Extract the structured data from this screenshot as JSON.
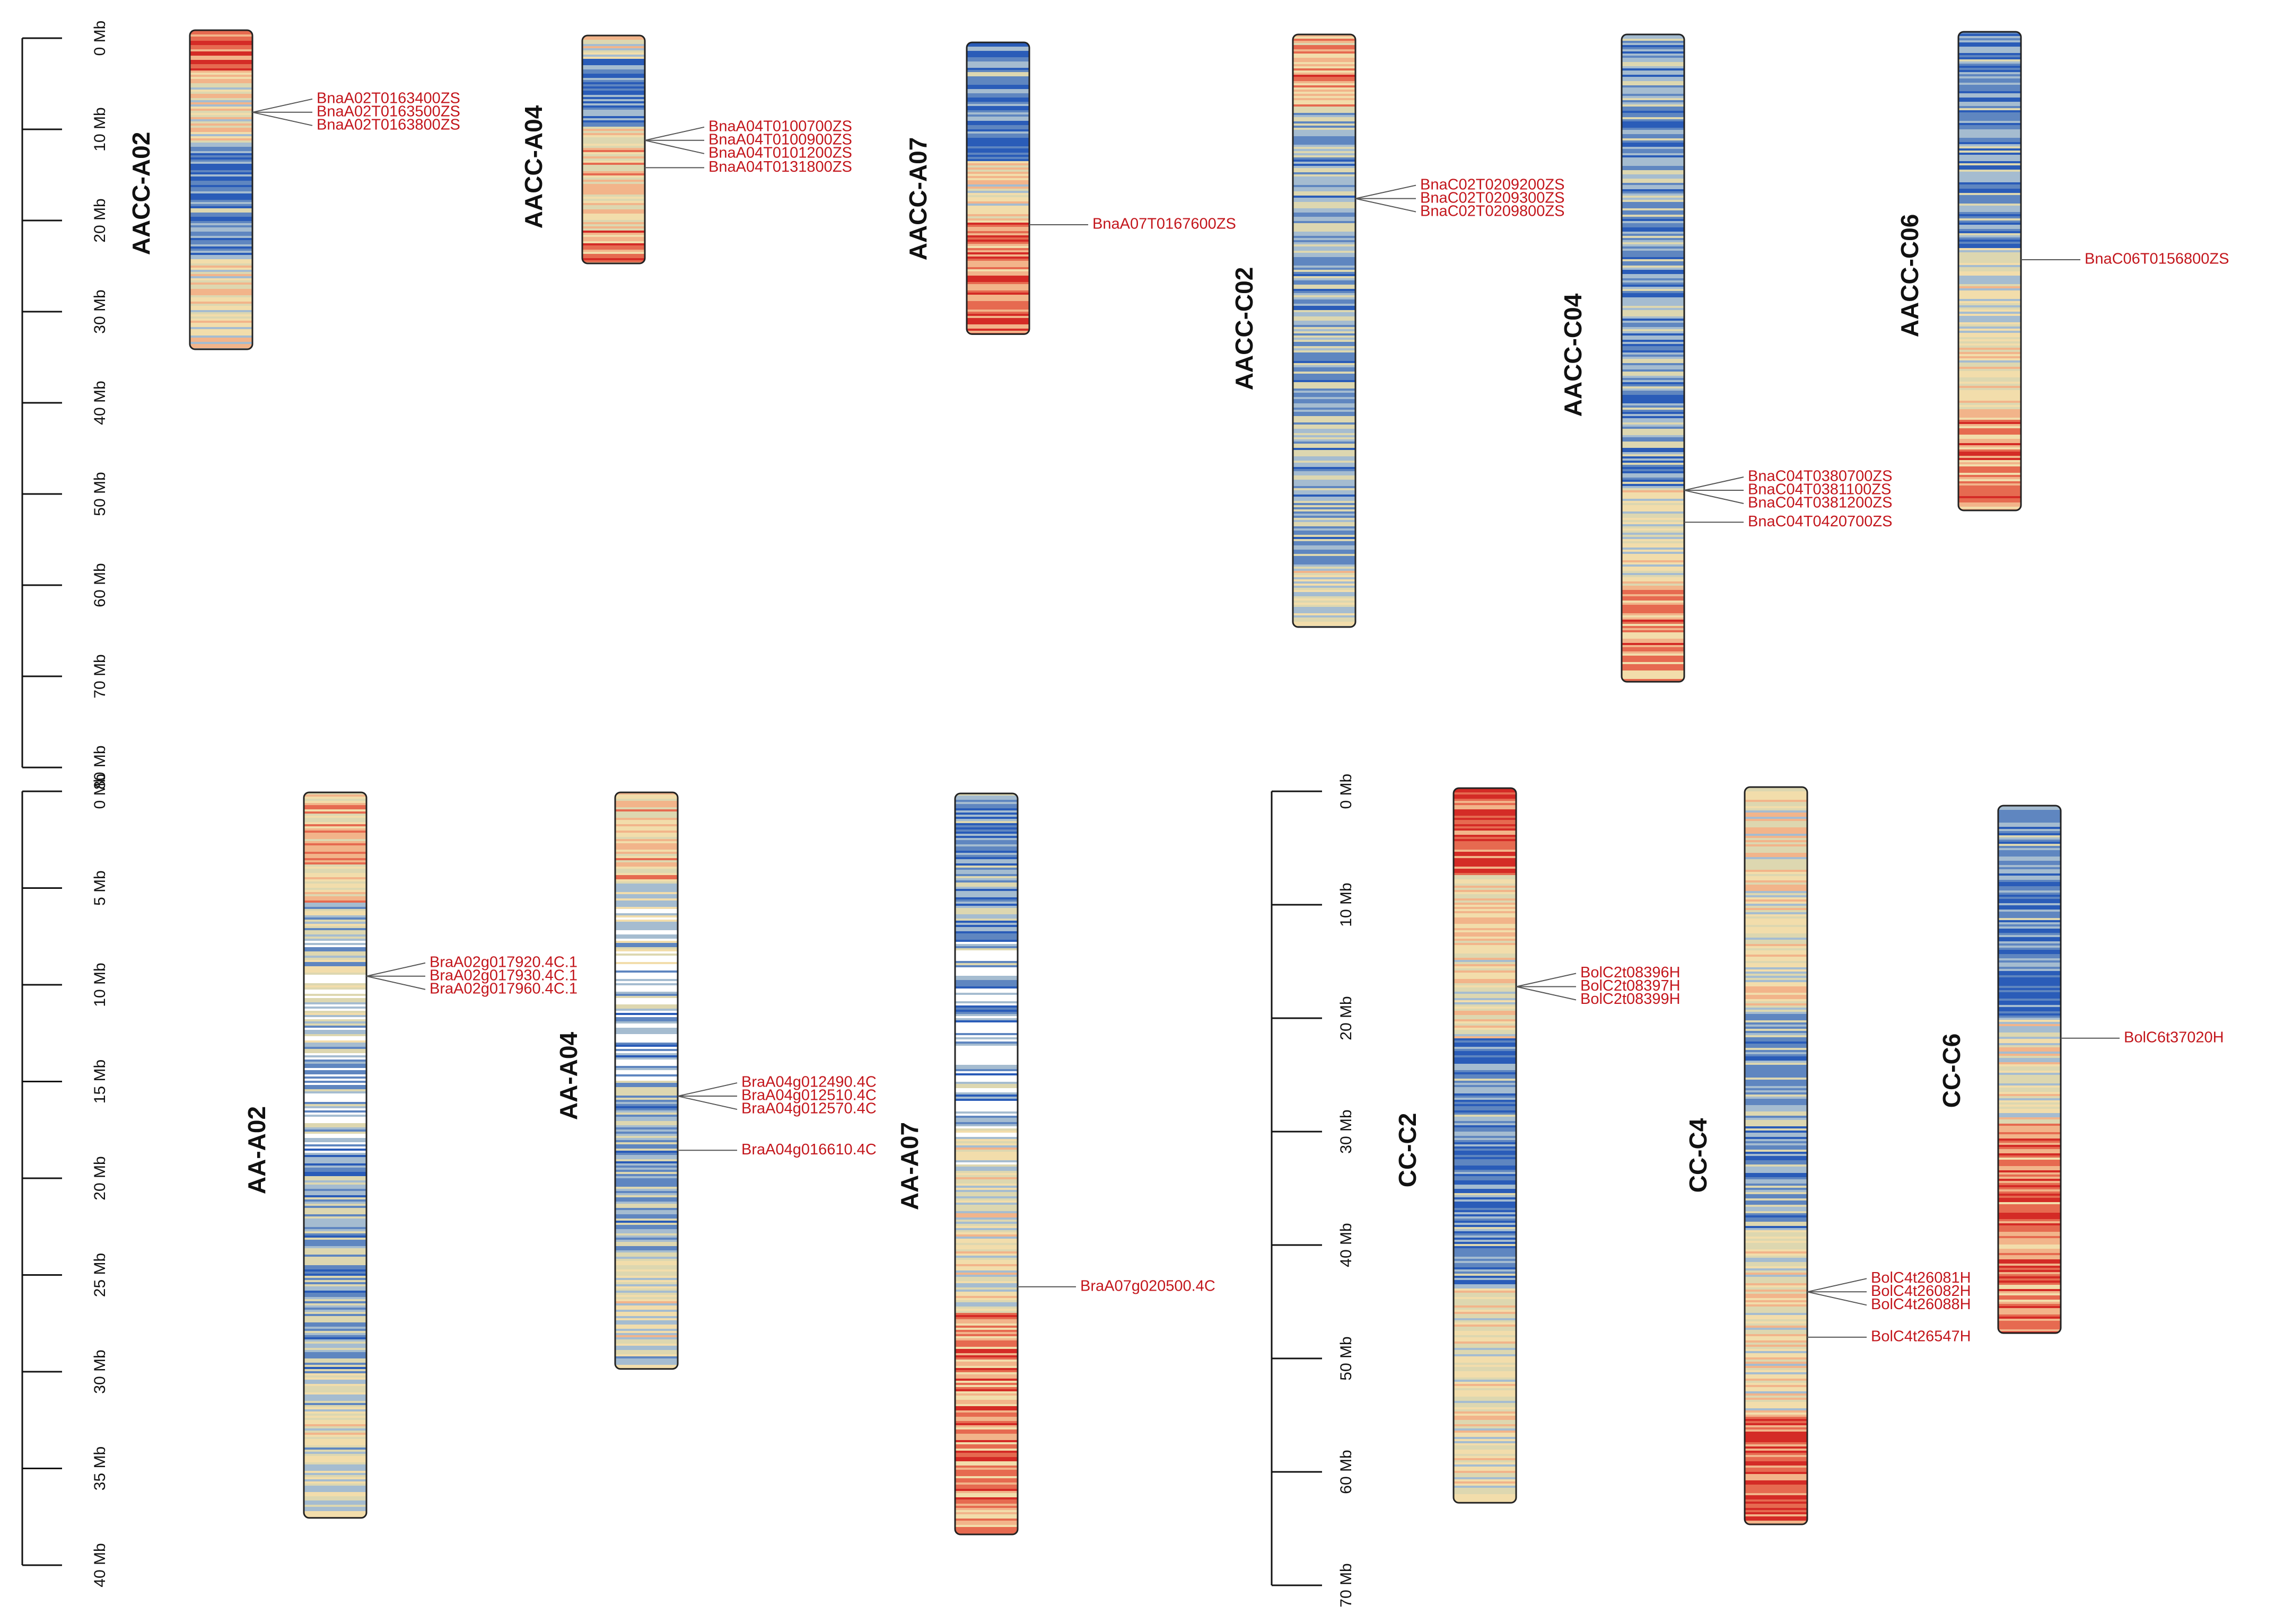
{
  "figure": {
    "colors": {
      "axis": "#111111",
      "gene_label": "#c3161c",
      "leader_line": "#555555",
      "chromosome_outline": "#222222",
      "density_palette": [
        "#2a5cb8",
        "#5f86c0",
        "#a5bcd0",
        "#ddd7b0",
        "#f2ddab",
        "#f2b48a",
        "#e66a50",
        "#d42b26"
      ]
    }
  },
  "scales": [
    {
      "id": "scale-aacc",
      "unit": "Mb",
      "min": 0,
      "max": 80,
      "step": 10,
      "labels": [
        "0 Mb",
        "10 Mb",
        "20 Mb",
        "30 Mb",
        "40 Mb",
        "50 Mb",
        "60 Mb",
        "70 Mb",
        "80 Mb"
      ]
    },
    {
      "id": "scale-aa",
      "unit": "Mb",
      "min": 0,
      "max": 40,
      "step": 5,
      "labels": [
        "0 Mb",
        "5 Mb",
        "10 Mb",
        "15 Mb",
        "20 Mb",
        "25 Mb",
        "30 Mb",
        "35 Mb",
        "40 Mb"
      ]
    },
    {
      "id": "scale-cc",
      "unit": "Mb",
      "min": 0,
      "max": 70,
      "step": 10,
      "labels": [
        "0 Mb",
        "10 Mb",
        "20 Mb",
        "30 Mb",
        "40 Mb",
        "50 Mb",
        "60 Mb",
        "70 Mb"
      ]
    }
  ],
  "chart_data": {
    "type": "chromosome_map",
    "genomes": [
      {
        "name": "AACC",
        "scale": "scale-aacc",
        "chromosomes": [
          {
            "name": "AACC-A02",
            "length_mb": 35.0,
            "density_profile": "red_top_blue_mid",
            "genes": [
              {
                "id": "BnaA02T0163400ZS",
                "position_mb": 9.0
              },
              {
                "id": "BnaA02T0163500ZS",
                "position_mb": 9.0
              },
              {
                "id": "BnaA02T0163800ZS",
                "position_mb": 9.0
              }
            ]
          },
          {
            "name": "AACC-A04",
            "length_mb": 25.0,
            "density_profile": "blue_top_warm_rest",
            "genes": [
              {
                "id": "BnaA04T0100700ZS",
                "position_mb": 11.5
              },
              {
                "id": "BnaA04T0100900ZS",
                "position_mb": 11.5
              },
              {
                "id": "BnaA04T0101200ZS",
                "position_mb": 11.5
              },
              {
                "id": "BnaA04T0131800ZS",
                "position_mb": 14.5
              }
            ]
          },
          {
            "name": "AACC-A07",
            "length_mb": 32.0,
            "density_profile": "blue_top_red_bottom",
            "genes": [
              {
                "id": "BnaA07T0167600ZS",
                "position_mb": 20.0
              }
            ]
          },
          {
            "name": "AACC-C02",
            "length_mb": 65.0,
            "density_profile": "warm_top_blue_body",
            "genes": [
              {
                "id": "BnaC02T0209200ZS",
                "position_mb": 18.0
              },
              {
                "id": "BnaC02T0209300ZS",
                "position_mb": 18.0
              },
              {
                "id": "BnaC02T0209800ZS",
                "position_mb": 18.0
              }
            ]
          },
          {
            "name": "AACC-C04",
            "length_mb": 71.0,
            "density_profile": "blue_body_warm_bottom",
            "genes": [
              {
                "id": "BnaC04T0380700ZS",
                "position_mb": 50.0
              },
              {
                "id": "BnaC04T0381100ZS",
                "position_mb": 50.0
              },
              {
                "id": "BnaC04T0381200ZS",
                "position_mb": 50.0
              },
              {
                "id": "BnaC04T0420700ZS",
                "position_mb": 53.5
              }
            ]
          },
          {
            "name": "AACC-C06",
            "length_mb": 52.5,
            "density_profile": "blue_top_warm_bottom",
            "genes": [
              {
                "id": "BnaC06T0156800ZS",
                "position_mb": 25.0
              }
            ]
          }
        ]
      },
      {
        "name": "AA",
        "scale": "scale-aa",
        "chromosomes": [
          {
            "name": "AA-A02",
            "length_mb": 37.5,
            "density_profile": "mixed_blue_gap",
            "genes": [
              {
                "id": "BraA02g017920.4C.1",
                "position_mb": 9.5
              },
              {
                "id": "BraA02g017930.4C.1",
                "position_mb": 9.5
              },
              {
                "id": "BraA02g017960.4C.1",
                "position_mb": 9.5
              }
            ]
          },
          {
            "name": "AA-A04",
            "length_mb": 29.8,
            "density_profile": "mixed_blue_gap",
            "genes": [
              {
                "id": "BraA04g012490.4C",
                "position_mb": 15.7
              },
              {
                "id": "BraA04g012510.4C",
                "position_mb": 15.7
              },
              {
                "id": "BraA04g012570.4C",
                "position_mb": 15.7
              },
              {
                "id": "BraA04g016610.4C",
                "position_mb": 18.5
              }
            ]
          },
          {
            "name": "AA-A07",
            "length_mb": 38.3,
            "density_profile": "blue_top_red_bottom_gap",
            "genes": [
              {
                "id": "BraA07g020500.4C",
                "position_mb": 25.5
              }
            ]
          }
        ]
      },
      {
        "name": "CC",
        "scale": "scale-cc",
        "chromosomes": [
          {
            "name": "CC-C2",
            "length_mb": 63.0,
            "density_profile": "red_top_blue_mid",
            "genes": [
              {
                "id": "BolC2t08396H",
                "position_mb": 17.5
              },
              {
                "id": "BolC2t08397H",
                "position_mb": 17.5
              },
              {
                "id": "BolC2t08399H",
                "position_mb": 17.5
              }
            ]
          },
          {
            "name": "CC-C4",
            "length_mb": 65.0,
            "density_profile": "mixed_blue_mid_red_bottom",
            "genes": [
              {
                "id": "BolC4t26081H",
                "position_mb": 44.5
              },
              {
                "id": "BolC4t26082H",
                "position_mb": 44.5
              },
              {
                "id": "BolC4t26088H",
                "position_mb": 44.5
              },
              {
                "id": "BolC4t26547H",
                "position_mb": 48.5
              }
            ]
          },
          {
            "name": "CC-C6",
            "length_mb": 46.5,
            "density_profile": "blue_top_red_bottom",
            "genes": [
              {
                "id": "BolC6t37020H",
                "position_mb": 20.5
              }
            ]
          }
        ]
      }
    ]
  }
}
